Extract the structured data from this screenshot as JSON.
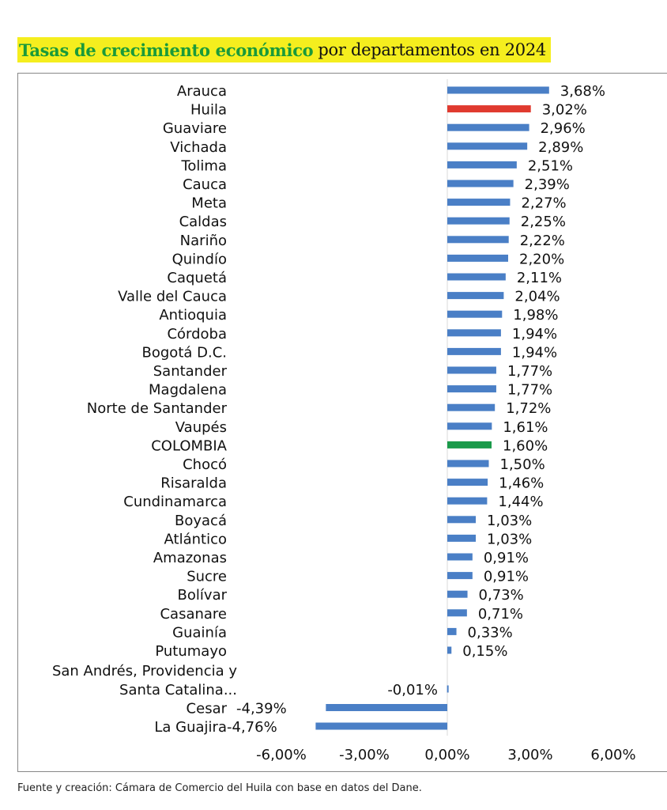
{
  "title": {
    "bold": "Tasas de crecimiento económico",
    "rest": "por departamentos en 2024"
  },
  "source": "Fuente y creación: Cámara de Comercio del Huila con base en datos del Dane.",
  "colors": {
    "default": "#4a7fc6",
    "highlight": "#e03a2f",
    "national": "#1a9a4a",
    "title_bg": "#f5ee1e",
    "title_green": "#1a9a3a"
  },
  "chart_data": {
    "type": "bar",
    "orientation": "horizontal",
    "xlim": [
      -6,
      6
    ],
    "xticks": [
      -6,
      -3,
      0,
      3,
      6
    ],
    "xtick_labels": [
      "-6,00%",
      "-3,00%",
      "0,00%",
      "3,00%",
      "6,00%"
    ],
    "categories": [
      "Arauca",
      "Huila",
      "Guaviare",
      "Vichada",
      "Tolima",
      "Cauca",
      "Meta",
      "Caldas",
      "Nariño",
      "Quindío",
      "Caquetá",
      "Valle del Cauca",
      "Antioquia",
      "Córdoba",
      "Bogotá D.C.",
      "Santander",
      "Magdalena",
      "Norte de Santander",
      "Vaupés",
      "COLOMBIA",
      "Chocó",
      "Risaralda",
      "Cundinamarca",
      "Boyacá",
      "Atlántico",
      "Amazonas",
      "Sucre",
      "Bolívar",
      "Casanare",
      "Guainía",
      "Putumayo",
      "San Andrés, Providencia y|Santa Catalina...",
      "Cesar",
      "La Guajira"
    ],
    "values": [
      3.68,
      3.02,
      2.96,
      2.89,
      2.51,
      2.39,
      2.27,
      2.25,
      2.22,
      2.2,
      2.11,
      2.04,
      1.98,
      1.94,
      1.94,
      1.77,
      1.77,
      1.72,
      1.61,
      1.6,
      1.5,
      1.46,
      1.44,
      1.03,
      1.03,
      0.91,
      0.91,
      0.73,
      0.71,
      0.33,
      0.15,
      -0.01,
      -4.39,
      -4.76
    ],
    "value_labels": [
      "3,68%",
      "3,02%",
      "2,96%",
      "2,89%",
      "2,51%",
      "2,39%",
      "2,27%",
      "2,25%",
      "2,22%",
      "2,20%",
      "2,11%",
      "2,04%",
      "1,98%",
      "1,94%",
      "1,94%",
      "1,77%",
      "1,77%",
      "1,72%",
      "1,61%",
      "1,60%",
      "1,50%",
      "1,46%",
      "1,44%",
      "1,03%",
      "1,03%",
      "0,91%",
      "0,91%",
      "0,73%",
      "0,71%",
      "0,33%",
      "0,15%",
      "-0,01%",
      "-4,39%",
      "-4,76%"
    ],
    "highlight": {
      "Huila": "highlight",
      "COLOMBIA": "national"
    }
  }
}
